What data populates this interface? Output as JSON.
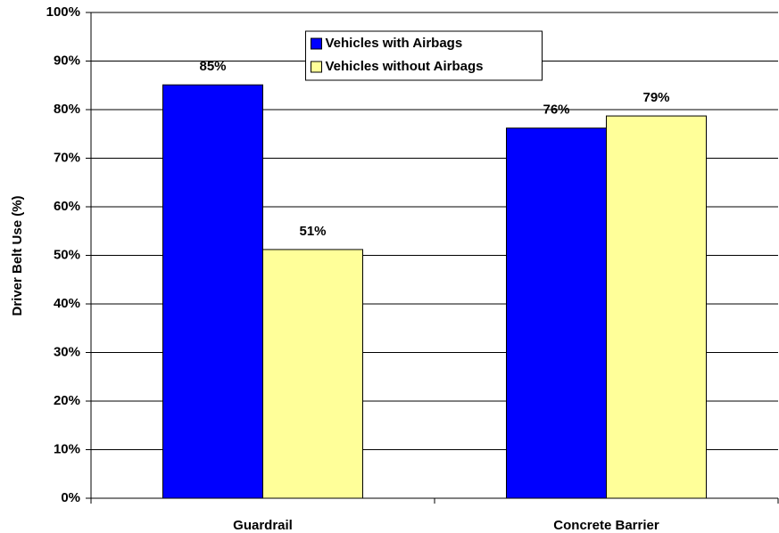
{
  "chart_data": {
    "type": "bar",
    "y_axis_label": "Driver Belt Use (%)",
    "categories": [
      "Guardrail",
      "Concrete Barrier"
    ],
    "series": [
      {
        "name": "Vehicles with Airbags",
        "color": "#0000ff",
        "values": [
          85.1,
          76.2
        ],
        "value_labels": [
          "85%",
          "76%"
        ]
      },
      {
        "name": "Vehicles without Airbags",
        "color": "#ffff99",
        "values": [
          51.2,
          78.7
        ],
        "value_labels": [
          "51%",
          "79%"
        ]
      }
    ],
    "ylim": [
      0,
      100
    ],
    "yticks": [
      {
        "value": 0,
        "label": "0%"
      },
      {
        "value": 10,
        "label": "10%"
      },
      {
        "value": 20,
        "label": "20%"
      },
      {
        "value": 30,
        "label": "30%"
      },
      {
        "value": 40,
        "label": "40%"
      },
      {
        "value": 50,
        "label": "50%"
      },
      {
        "value": 60,
        "label": "60%"
      },
      {
        "value": 70,
        "label": "70%"
      },
      {
        "value": 80,
        "label": "80%"
      },
      {
        "value": 90,
        "label": "90%"
      },
      {
        "value": 100,
        "label": "100%"
      }
    ],
    "grid": true,
    "legend": "upper center"
  }
}
